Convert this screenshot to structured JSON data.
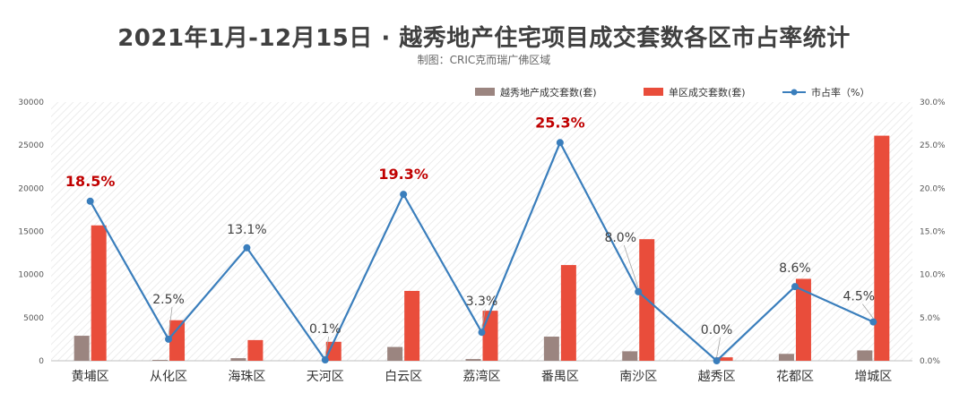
{
  "header": {
    "title": "2021年1月-12月15日 · 越秀地产住宅项目成交套数各区市占率统计",
    "subtitle": "制图：CRIC克而瑞广佛区域"
  },
  "colors": {
    "yuexiu_bar": "#9b8580",
    "district_bar": "#e94d3b",
    "share_line": "#3a7ebc",
    "highlight_label": "#c00000"
  },
  "chart_data": {
    "type": "bar",
    "categories": [
      "黄埔区",
      "从化区",
      "海珠区",
      "天河区",
      "白云区",
      "荔湾区",
      "番禺区",
      "南沙区",
      "越秀区",
      "花都区",
      "增城区"
    ],
    "series": [
      {
        "name": "越秀地产成交套数(套)",
        "type": "bar",
        "axis": "left",
        "values": [
          2900,
          100,
          300,
          0,
          1600,
          200,
          2800,
          1100,
          0,
          800,
          1200
        ]
      },
      {
        "name": "单区成交套数(套)",
        "type": "bar",
        "axis": "left",
        "values": [
          15700,
          4700,
          2400,
          2200,
          8100,
          5800,
          11100,
          14100,
          400,
          9500,
          26100
        ]
      },
      {
        "name": "市占率（%）",
        "type": "line",
        "axis": "right",
        "values": [
          18.5,
          2.5,
          13.1,
          0.1,
          19.3,
          3.3,
          25.3,
          8.0,
          0.0,
          8.6,
          4.5
        ]
      }
    ],
    "data_labels": [
      "18.5%",
      "2.5%",
      "13.1%",
      "0.1%",
      "19.3%",
      "3.3%",
      "25.3%",
      "8.0%",
      "0.0%",
      "8.6%",
      "4.5%"
    ],
    "highlighted_labels": [
      0,
      4,
      6
    ],
    "y_left_ticks": [
      "0",
      "5000",
      "10000",
      "15000",
      "20000",
      "25000",
      "30000"
    ],
    "y_right_ticks": [
      "0.0%",
      "5.0%",
      "10.0%",
      "15.0%",
      "20.0%",
      "25.0%",
      "30.0%"
    ],
    "ylim_left": [
      0,
      30000
    ],
    "ylim_right": [
      0,
      30
    ],
    "legend_position": "top-right",
    "grid": false,
    "background": "diagonal-hatch"
  }
}
